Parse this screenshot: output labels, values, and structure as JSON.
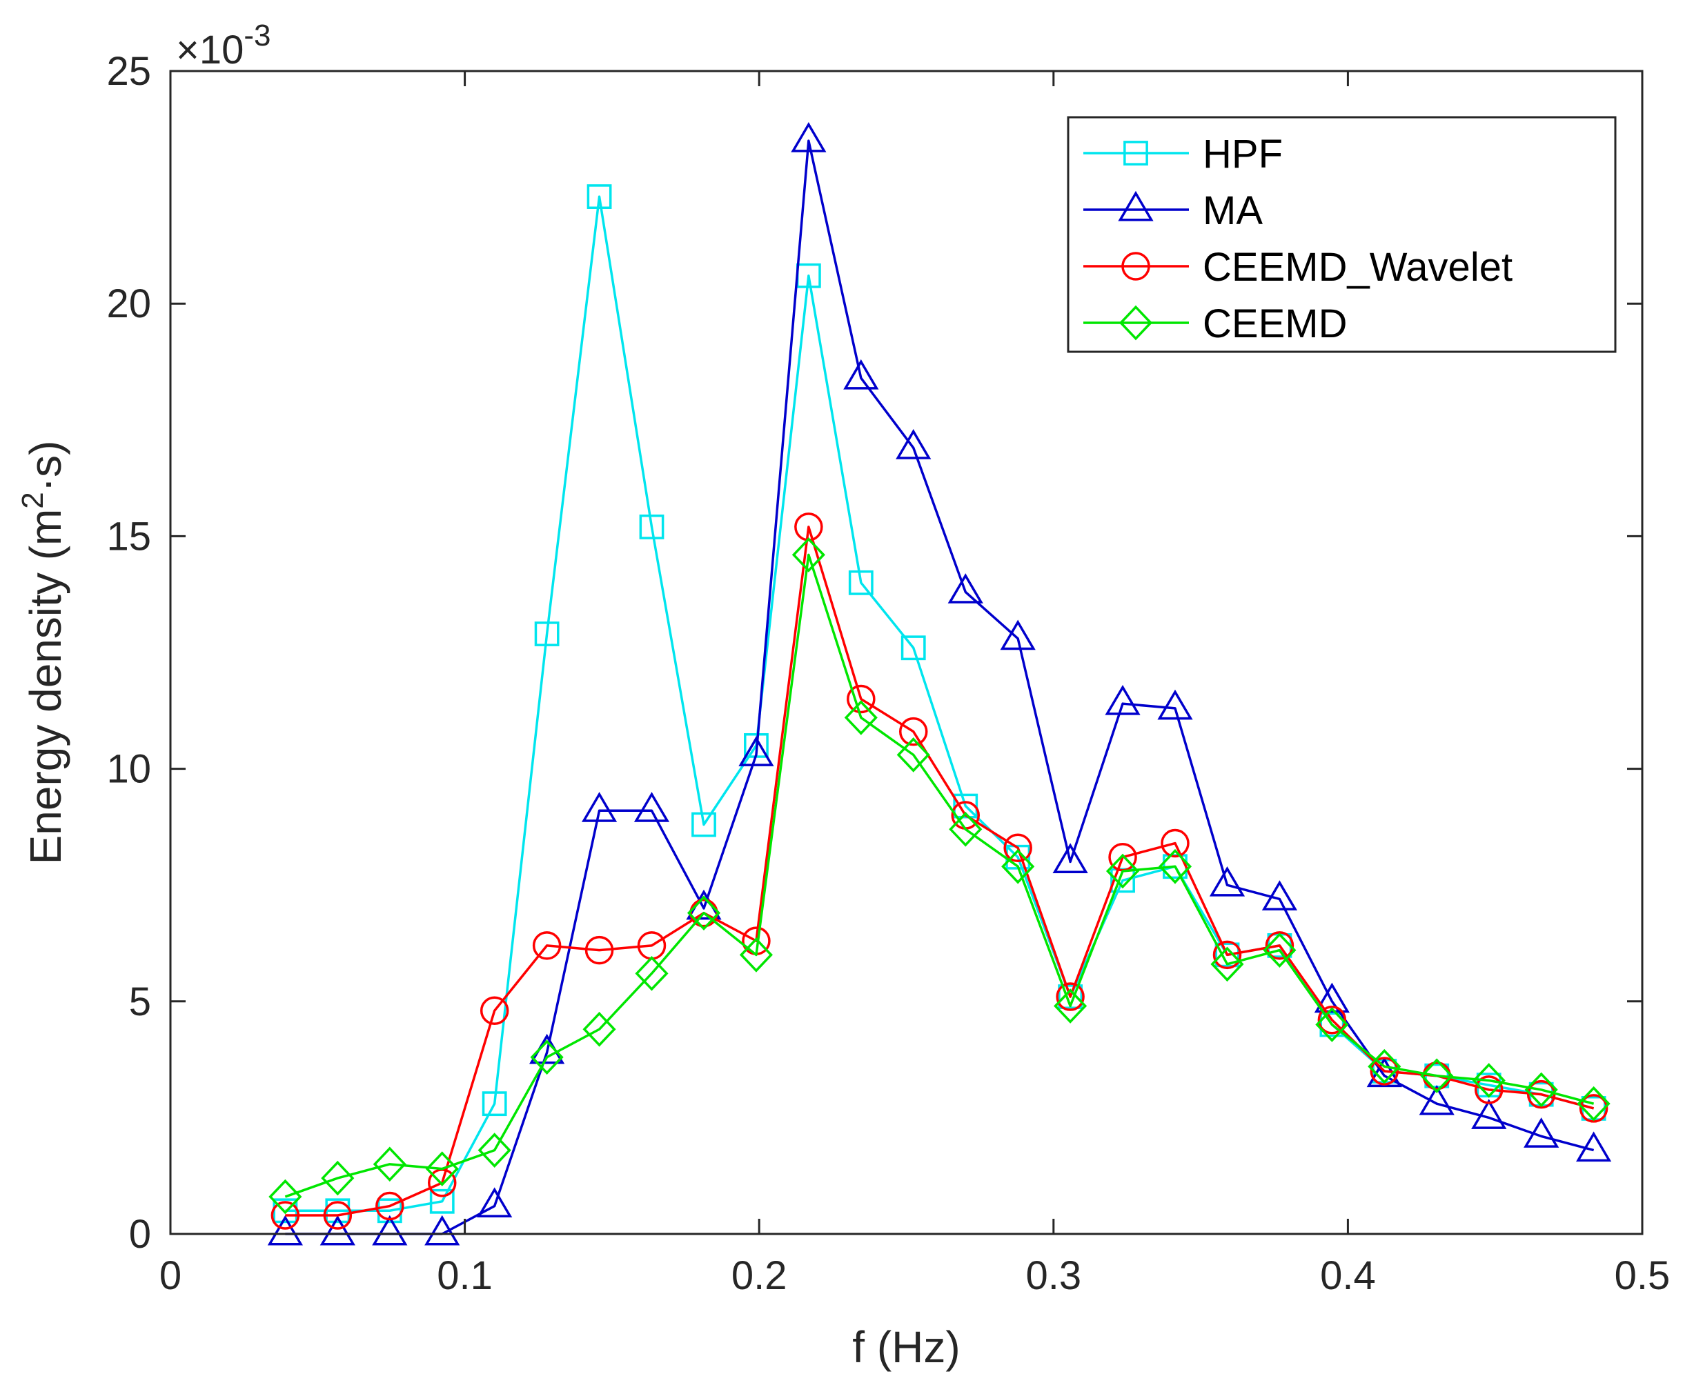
{
  "chart_data": {
    "type": "line",
    "title": "",
    "xlabel": "f (Hz)",
    "ylabel": {
      "main": "Energy density (m",
      "superscript": "2",
      "suffix": "·s)"
    },
    "y_exponent": {
      "base": "×10",
      "power": "-3"
    },
    "xlim": [
      0,
      0.5
    ],
    "ylim": [
      0,
      25
    ],
    "xticks": [
      0,
      0.1,
      0.2,
      0.3,
      0.4,
      0.5
    ],
    "xtick_labels": [
      "0",
      "0.1",
      "0.2",
      "0.3",
      "0.4",
      "0.5"
    ],
    "yticks": [
      0,
      5,
      10,
      15,
      20,
      25
    ],
    "ytick_labels": [
      "0",
      "5",
      "10",
      "15",
      "20",
      "25"
    ],
    "grid": false,
    "legend_position": "top-right",
    "x": [
      0.039,
      0.0568,
      0.0745,
      0.0923,
      0.1101,
      0.1279,
      0.1457,
      0.1635,
      0.1812,
      0.199,
      0.2168,
      0.2346,
      0.2524,
      0.2701,
      0.2879,
      0.3057,
      0.3235,
      0.3413,
      0.359,
      0.3768,
      0.3946,
      0.4124,
      0.4302,
      0.4479,
      0.4657,
      0.4835
    ],
    "series": [
      {
        "name": "HPF",
        "color": "#00E5EE",
        "marker": "square",
        "values": [
          0.5,
          0.5,
          0.5,
          0.7,
          2.8,
          12.9,
          22.3,
          15.2,
          8.8,
          10.5,
          20.6,
          14.0,
          12.6,
          9.2,
          8.1,
          5.1,
          7.6,
          7.9,
          6.0,
          6.2,
          4.5,
          3.5,
          3.4,
          3.2,
          3.0,
          2.7
        ]
      },
      {
        "name": "MA",
        "color": "#0000CC",
        "marker": "triangle",
        "values": [
          0.0,
          0.0,
          0.0,
          0.0,
          0.6,
          3.9,
          9.1,
          9.1,
          7.0,
          10.3,
          23.5,
          18.4,
          16.9,
          13.8,
          12.8,
          8.0,
          11.4,
          11.3,
          7.5,
          7.2,
          5.0,
          3.4,
          2.8,
          2.5,
          2.1,
          1.8
        ]
      },
      {
        "name": "CEEMD_Wavelet",
        "color": "#FF0000",
        "marker": "circle",
        "values": [
          0.4,
          0.4,
          0.6,
          1.1,
          4.8,
          6.2,
          6.1,
          6.2,
          6.9,
          6.3,
          15.2,
          11.5,
          10.8,
          9.0,
          8.3,
          5.1,
          8.1,
          8.4,
          6.0,
          6.2,
          4.6,
          3.5,
          3.4,
          3.1,
          3.0,
          2.7
        ]
      },
      {
        "name": "CEEMD",
        "color": "#00E600",
        "marker": "diamond",
        "values": [
          0.8,
          1.2,
          1.5,
          1.4,
          1.8,
          3.8,
          4.4,
          5.6,
          6.9,
          6.0,
          14.6,
          11.1,
          10.3,
          8.7,
          7.9,
          4.9,
          7.8,
          7.9,
          5.8,
          6.1,
          4.5,
          3.6,
          3.4,
          3.3,
          3.1,
          2.8
        ]
      }
    ]
  }
}
